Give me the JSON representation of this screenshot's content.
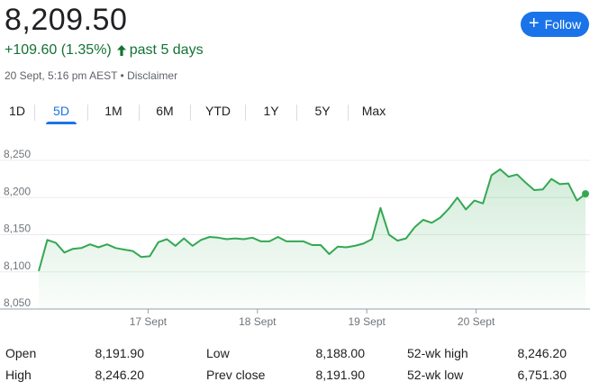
{
  "quote": {
    "price": "8,209.50",
    "change": "+109.60 (1.35%)",
    "period": "past 5 days",
    "timestamp": "20 Sept, 5:16 pm AEST",
    "separator": "•",
    "disclaimer": "Disclaimer"
  },
  "follow_button": {
    "label": "Follow",
    "icon": "plus-icon"
  },
  "tabs": [
    {
      "label": "1D"
    },
    {
      "label": "5D",
      "active": true
    },
    {
      "label": "1M"
    },
    {
      "label": "6M"
    },
    {
      "label": "YTD"
    },
    {
      "label": "1Y"
    },
    {
      "label": "5Y"
    },
    {
      "label": "Max"
    }
  ],
  "colors": {
    "positive": "#137333",
    "line": "#34a853",
    "accent": "#1a73e8"
  },
  "chart_data": {
    "type": "area",
    "y_ticks": [
      "8,250",
      "8,200",
      "8,150",
      "8,100",
      "8,050"
    ],
    "ylim": [
      8050,
      8260
    ],
    "x_ticks": [
      {
        "label": "17 Sept",
        "x": 12
      },
      {
        "label": "18 Sept",
        "x": 24
      },
      {
        "label": "19 Sept",
        "x": 36
      },
      {
        "label": "20 Sept",
        "x": 48
      }
    ],
    "xlim": [
      0,
      60
    ],
    "grid": true,
    "values": [
      8101,
      8143,
      8139,
      8126,
      8131,
      8132,
      8137,
      8133,
      8137,
      8132,
      8130,
      8128,
      8120,
      8121,
      8140,
      8144,
      8135,
      8145,
      8135,
      8143,
      8147,
      8146,
      8144,
      8145,
      8144,
      8146,
      8141,
      8141,
      8147,
      8141,
      8141,
      8141,
      8136,
      8136,
      8124,
      8134,
      8133,
      8135,
      8138,
      8144,
      8186,
      8150,
      8142,
      8145,
      8160,
      8170,
      8166,
      8173,
      8185,
      8200,
      8184,
      8196,
      8192,
      8230,
      8238,
      8228,
      8231,
      8220,
      8210,
      8211,
      8225,
      8218,
      8219,
      8196,
      8205
    ]
  },
  "stats": {
    "left": [
      {
        "label": "Open",
        "value": "8,191.90"
      },
      {
        "label": "High",
        "value": "8,246.20"
      }
    ],
    "middle": [
      {
        "label": "Low",
        "value": "8,188.00"
      },
      {
        "label": "Prev close",
        "value": "8,191.90"
      }
    ],
    "right": [
      {
        "label": "52-wk high",
        "value": "8,246.20"
      },
      {
        "label": "52-wk low",
        "value": "6,751.30"
      }
    ]
  }
}
